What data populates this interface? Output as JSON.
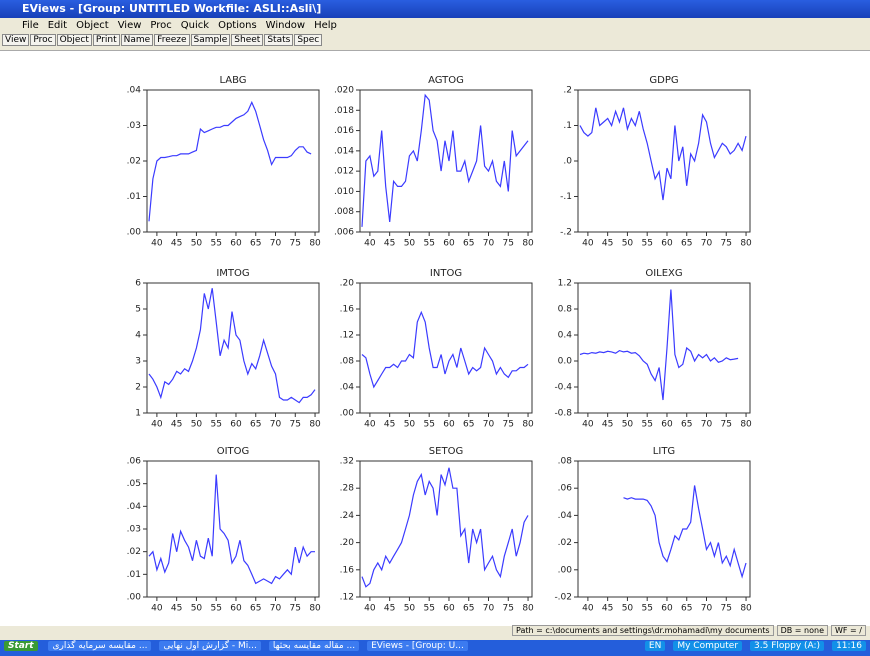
{
  "window": {
    "title": "EViews - [Group: UNTITLED   Workfile: ASLI::Asli\\]",
    "menu": [
      "File",
      "Edit",
      "Object",
      "View",
      "Proc",
      "Quick",
      "Options",
      "Window",
      "Help"
    ],
    "toolbar": [
      "View",
      "Proc",
      "Object",
      "Print",
      "Name",
      "Freeze",
      "Sample",
      "Sheet",
      "Stats",
      "Spec"
    ],
    "status": {
      "path": "Path = c:\\documents and settings\\dr.mohamadi\\my documents",
      "db": "DB = none",
      "wf": "WF = /"
    }
  },
  "taskbar": {
    "start": "Start",
    "items": [
      "مقایسه سرمایه گذاری ...",
      "گزارش اول نهایی - Mi...",
      "مقاله مقایسه بحثها ...",
      "EViews - [Group: U..."
    ],
    "lang": "EN",
    "tray": [
      "My Computer",
      "3.5 Floppy (A:)"
    ],
    "clock": "11:16"
  },
  "chart_data": [
    {
      "type": "line",
      "title": "LABG",
      "color": "#3b3bff",
      "xlim": [
        37.5,
        81
      ],
      "xticks": [
        40,
        45,
        50,
        55,
        60,
        65,
        70,
        75,
        80
      ],
      "ylim": [
        0,
        0.04
      ],
      "yticks": [
        {
          "value": 0,
          "label": ".00"
        },
        {
          "value": 0.01,
          "label": ".01"
        },
        {
          "value": 0.02,
          "label": ".02"
        },
        {
          "value": 0.03,
          "label": ".03"
        },
        {
          "value": 0.04,
          "label": ".04"
        }
      ],
      "x": [
        38,
        39,
        40,
        41,
        42,
        43,
        44,
        45,
        46,
        47,
        48,
        49,
        50,
        51,
        52,
        53,
        54,
        55,
        56,
        57,
        58,
        59,
        60,
        61,
        62,
        63,
        64,
        65,
        66,
        67,
        68,
        69,
        70,
        71,
        72,
        73,
        74,
        75,
        76,
        77,
        78,
        79,
        80
      ],
      "values": [
        0.003,
        0.015,
        0.02,
        0.021,
        0.021,
        0.0212,
        0.0215,
        0.0215,
        0.022,
        0.022,
        0.022,
        0.0225,
        0.023,
        0.029,
        0.028,
        0.0285,
        0.029,
        0.0295,
        0.0295,
        0.03,
        0.03,
        0.031,
        0.032,
        0.0325,
        0.033,
        0.034,
        0.0365,
        0.034,
        0.03,
        0.026,
        0.023,
        0.019,
        0.021,
        0.021,
        0.021,
        0.021,
        0.0215,
        0.023,
        0.024,
        0.024,
        0.0225,
        0.022,
        null
      ]
    },
    {
      "type": "line",
      "title": "AGTOG",
      "color": "#3b3bff",
      "xlim": [
        37.5,
        81
      ],
      "xticks": [
        40,
        45,
        50,
        55,
        60,
        65,
        70,
        75,
        80
      ],
      "ylim": [
        0.006,
        0.02
      ],
      "yticks": [
        {
          "value": 0.006,
          "label": ".006"
        },
        {
          "value": 0.008,
          "label": ".008"
        },
        {
          "value": 0.01,
          "label": ".010"
        },
        {
          "value": 0.012,
          "label": ".012"
        },
        {
          "value": 0.014,
          "label": ".014"
        },
        {
          "value": 0.016,
          "label": ".016"
        },
        {
          "value": 0.018,
          "label": ".018"
        },
        {
          "value": 0.02,
          "label": ".020"
        }
      ],
      "x": [
        38,
        39,
        40,
        41,
        42,
        43,
        44,
        45,
        46,
        47,
        48,
        49,
        50,
        51,
        52,
        53,
        54,
        55,
        56,
        57,
        58,
        59,
        60,
        61,
        62,
        63,
        64,
        65,
        66,
        67,
        68,
        69,
        70,
        71,
        72,
        73,
        74,
        75,
        76,
        77,
        78,
        79,
        80
      ],
      "values": [
        0.0065,
        0.013,
        0.0135,
        0.0115,
        0.012,
        0.016,
        0.0105,
        0.007,
        0.011,
        0.0105,
        0.0105,
        0.011,
        0.0135,
        0.014,
        0.013,
        0.016,
        0.0195,
        0.019,
        0.016,
        0.015,
        0.012,
        0.015,
        0.013,
        0.016,
        0.012,
        0.012,
        0.013,
        0.011,
        0.012,
        0.013,
        0.0165,
        0.0125,
        0.012,
        0.013,
        0.011,
        0.0105,
        0.013,
        0.01,
        0.016,
        0.0135,
        0.014,
        0.0145,
        0.015
      ]
    },
    {
      "type": "line",
      "title": "GDPG",
      "color": "#3b3bff",
      "xlim": [
        37.5,
        81
      ],
      "xticks": [
        40,
        45,
        50,
        55,
        60,
        65,
        70,
        75,
        80
      ],
      "ylim": [
        -0.2,
        0.2
      ],
      "yticks": [
        {
          "value": -0.2,
          "label": "-.2"
        },
        {
          "value": -0.1,
          "label": "-.1"
        },
        {
          "value": 0,
          "label": ".0"
        },
        {
          "value": 0.1,
          "label": ".1"
        },
        {
          "value": 0.2,
          "label": ".2"
        }
      ],
      "x": [
        38,
        39,
        40,
        41,
        42,
        43,
        44,
        45,
        46,
        47,
        48,
        49,
        50,
        51,
        52,
        53,
        54,
        55,
        56,
        57,
        58,
        59,
        60,
        61,
        62,
        63,
        64,
        65,
        66,
        67,
        68,
        69,
        70,
        71,
        72,
        73,
        74,
        75,
        76,
        77,
        78,
        79,
        80
      ],
      "values": [
        0.1,
        0.08,
        0.07,
        0.08,
        0.15,
        0.1,
        0.11,
        0.12,
        0.1,
        0.14,
        0.11,
        0.15,
        0.09,
        0.12,
        0.1,
        0.14,
        0.09,
        0.05,
        0,
        -0.05,
        -0.03,
        -0.11,
        -0.02,
        -0.05,
        0.1,
        0,
        0.04,
        -0.07,
        0.02,
        0,
        0.05,
        0.13,
        0.11,
        0.05,
        0.01,
        0.03,
        0.05,
        0.04,
        0.02,
        0.03,
        0.05,
        0.03,
        0.07
      ]
    },
    {
      "type": "line",
      "title": "IMTOG",
      "color": "#3b3bff",
      "xlim": [
        37.5,
        81
      ],
      "xticks": [
        40,
        45,
        50,
        55,
        60,
        65,
        70,
        75,
        80
      ],
      "ylim": [
        1,
        6
      ],
      "yticks": [
        1,
        2,
        3,
        4,
        5,
        6
      ],
      "x": [
        38,
        39,
        40,
        41,
        42,
        43,
        44,
        45,
        46,
        47,
        48,
        49,
        50,
        51,
        52,
        53,
        54,
        55,
        56,
        57,
        58,
        59,
        60,
        61,
        62,
        63,
        64,
        65,
        66,
        67,
        68,
        69,
        70,
        71,
        72,
        73,
        74,
        75,
        76,
        77,
        78,
        79,
        80
      ],
      "values": [
        2.5,
        2.3,
        2.0,
        1.6,
        2.2,
        2.1,
        2.3,
        2.6,
        2.5,
        2.7,
        2.6,
        3.0,
        3.5,
        4.2,
        5.6,
        5.0,
        5.8,
        4.5,
        3.2,
        3.8,
        3.5,
        4.9,
        4.0,
        3.8,
        3.0,
        2.5,
        2.9,
        2.7,
        3.2,
        3.8,
        3.3,
        2.8,
        2.5,
        1.6,
        1.5,
        1.5,
        1.6,
        1.5,
        1.4,
        1.6,
        1.6,
        1.7,
        1.9
      ]
    },
    {
      "type": "line",
      "title": "INTOG",
      "color": "#3b3bff",
      "xlim": [
        37.5,
        81
      ],
      "xticks": [
        40,
        45,
        50,
        55,
        60,
        65,
        70,
        75,
        80
      ],
      "ylim": [
        0,
        0.2
      ],
      "yticks": [
        {
          "value": 0,
          "label": ".00"
        },
        {
          "value": 0.04,
          "label": ".04"
        },
        {
          "value": 0.08,
          "label": ".08"
        },
        {
          "value": 0.12,
          "label": ".12"
        },
        {
          "value": 0.16,
          "label": ".16"
        },
        {
          "value": 0.2,
          "label": ".20"
        }
      ],
      "x": [
        38,
        39,
        40,
        41,
        42,
        43,
        44,
        45,
        46,
        47,
        48,
        49,
        50,
        51,
        52,
        53,
        54,
        55,
        56,
        57,
        58,
        59,
        60,
        61,
        62,
        63,
        64,
        65,
        66,
        67,
        68,
        69,
        70,
        71,
        72,
        73,
        74,
        75,
        76,
        77,
        78,
        79,
        80
      ],
      "values": [
        0.09,
        0.085,
        0.06,
        0.04,
        0.05,
        0.06,
        0.07,
        0.07,
        0.075,
        0.07,
        0.08,
        0.08,
        0.09,
        0.085,
        0.14,
        0.155,
        0.14,
        0.1,
        0.07,
        0.07,
        0.09,
        0.06,
        0.08,
        0.09,
        0.07,
        0.1,
        0.08,
        0.06,
        0.07,
        0.065,
        0.07,
        0.1,
        0.09,
        0.08,
        0.06,
        0.07,
        0.06,
        0.055,
        0.065,
        0.065,
        0.07,
        0.07,
        0.075
      ]
    },
    {
      "type": "line",
      "title": "OILEXG",
      "color": "#3b3bff",
      "xlim": [
        37.5,
        81
      ],
      "xticks": [
        40,
        45,
        50,
        55,
        60,
        65,
        70,
        75,
        80
      ],
      "ylim": [
        -0.8,
        1.2
      ],
      "yticks": [
        -0.8,
        -0.4,
        {
          "value": 0,
          "label": "0.0"
        },
        0.4,
        0.8,
        1.2
      ],
      "x": [
        38,
        39,
        40,
        41,
        42,
        43,
        44,
        45,
        46,
        47,
        48,
        49,
        50,
        51,
        52,
        53,
        54,
        55,
        56,
        57,
        58,
        59,
        60,
        61,
        62,
        63,
        64,
        65,
        66,
        67,
        68,
        69,
        70,
        71,
        72,
        73,
        74,
        75,
        76,
        77,
        78,
        79,
        80
      ],
      "values": [
        0.1,
        0.12,
        0.11,
        0.13,
        0.12,
        0.14,
        0.13,
        0.15,
        0.14,
        0.12,
        0.16,
        0.14,
        0.15,
        0.12,
        0.13,
        0.08,
        0,
        -0.05,
        -0.2,
        -0.3,
        -0.1,
        -0.6,
        0.2,
        1.1,
        0.1,
        -0.1,
        -0.05,
        0.2,
        0.15,
        0,
        0.1,
        0.05,
        0.1,
        0,
        0.05,
        -0.02,
        0,
        0.05,
        0.02,
        0.03,
        0.04,
        null,
        null
      ]
    },
    {
      "type": "line",
      "title": "OITOG",
      "color": "#3b3bff",
      "xlim": [
        37.5,
        81
      ],
      "xticks": [
        40,
        45,
        50,
        55,
        60,
        65,
        70,
        75,
        80
      ],
      "ylim": [
        0,
        0.06
      ],
      "yticks": [
        {
          "value": 0,
          "label": ".00"
        },
        {
          "value": 0.01,
          "label": ".01"
        },
        {
          "value": 0.02,
          "label": ".02"
        },
        {
          "value": 0.03,
          "label": ".03"
        },
        {
          "value": 0.04,
          "label": ".04"
        },
        {
          "value": 0.05,
          "label": ".05"
        },
        {
          "value": 0.06,
          "label": ".06"
        }
      ],
      "x": [
        38,
        39,
        40,
        41,
        42,
        43,
        44,
        45,
        46,
        47,
        48,
        49,
        50,
        51,
        52,
        53,
        54,
        55,
        56,
        57,
        58,
        59,
        60,
        61,
        62,
        63,
        64,
        65,
        66,
        67,
        68,
        69,
        70,
        71,
        72,
        73,
        74,
        75,
        76,
        77,
        78,
        79,
        80
      ],
      "values": [
        0.018,
        0.02,
        0.012,
        0.017,
        0.011,
        0.015,
        0.028,
        0.02,
        0.029,
        0.025,
        0.022,
        0.016,
        0.025,
        0.018,
        0.017,
        0.026,
        0.018,
        0.054,
        0.03,
        0.028,
        0.025,
        0.015,
        0.018,
        0.025,
        0.016,
        0.014,
        0.01,
        0.006,
        0.007,
        0.008,
        0.007,
        0.006,
        0.009,
        0.008,
        0.01,
        0.012,
        0.01,
        0.022,
        0.015,
        0.022,
        0.018,
        0.02,
        0.02
      ]
    },
    {
      "type": "line",
      "title": "SETOG",
      "color": "#3b3bff",
      "xlim": [
        37.5,
        81
      ],
      "xticks": [
        40,
        45,
        50,
        55,
        60,
        65,
        70,
        75,
        80
      ],
      "ylim": [
        0.12,
        0.32
      ],
      "yticks": [
        {
          "value": 0.12,
          "label": ".12"
        },
        {
          "value": 0.16,
          "label": ".16"
        },
        {
          "value": 0.2,
          "label": ".20"
        },
        {
          "value": 0.24,
          "label": ".24"
        },
        {
          "value": 0.28,
          "label": ".28"
        },
        {
          "value": 0.32,
          "label": ".32"
        }
      ],
      "x": [
        38,
        39,
        40,
        41,
        42,
        43,
        44,
        45,
        46,
        47,
        48,
        49,
        50,
        51,
        52,
        53,
        54,
        55,
        56,
        57,
        58,
        59,
        60,
        61,
        62,
        63,
        64,
        65,
        66,
        67,
        68,
        69,
        70,
        71,
        72,
        73,
        74,
        75,
        76,
        77,
        78,
        79,
        80
      ],
      "values": [
        0.15,
        0.135,
        0.14,
        0.16,
        0.17,
        0.16,
        0.18,
        0.17,
        0.18,
        0.19,
        0.2,
        0.22,
        0.24,
        0.27,
        0.29,
        0.3,
        0.27,
        0.29,
        0.28,
        0.24,
        0.3,
        0.285,
        0.31,
        0.28,
        0.28,
        0.21,
        0.22,
        0.17,
        0.22,
        0.2,
        0.22,
        0.16,
        0.17,
        0.18,
        0.16,
        0.15,
        0.18,
        0.2,
        0.22,
        0.18,
        0.2,
        0.23,
        0.24
      ]
    },
    {
      "type": "line",
      "title": "LITG",
      "color": "#3b3bff",
      "xlim": [
        37.5,
        81
      ],
      "xticks": [
        40,
        45,
        50,
        55,
        60,
        65,
        70,
        75,
        80
      ],
      "ylim": [
        -0.02,
        0.08
      ],
      "yticks": [
        {
          "value": -0.02,
          "label": "-.02"
        },
        {
          "value": 0,
          "label": ".00"
        },
        {
          "value": 0.02,
          "label": ".02"
        },
        {
          "value": 0.04,
          "label": ".04"
        },
        {
          "value": 0.06,
          "label": ".06"
        },
        {
          "value": 0.08,
          "label": ".08"
        }
      ],
      "x": [
        38,
        39,
        40,
        41,
        42,
        43,
        44,
        45,
        46,
        47,
        48,
        49,
        50,
        51,
        52,
        53,
        54,
        55,
        56,
        57,
        58,
        59,
        60,
        61,
        62,
        63,
        64,
        65,
        66,
        67,
        68,
        69,
        70,
        71,
        72,
        73,
        74,
        75,
        76,
        77,
        78,
        79,
        80
      ],
      "values": [
        null,
        null,
        null,
        null,
        null,
        null,
        null,
        null,
        null,
        null,
        null,
        0.053,
        0.052,
        0.053,
        0.052,
        0.052,
        0.052,
        0.051,
        0.047,
        0.04,
        0.02,
        0.01,
        0.006,
        0.015,
        0.025,
        0.022,
        0.03,
        0.03,
        0.035,
        0.062,
        0.045,
        0.03,
        0.015,
        0.02,
        0.01,
        0.02,
        0.005,
        0.01,
        0.003,
        0.015,
        0.005,
        -0.005,
        0.005
      ]
    }
  ]
}
